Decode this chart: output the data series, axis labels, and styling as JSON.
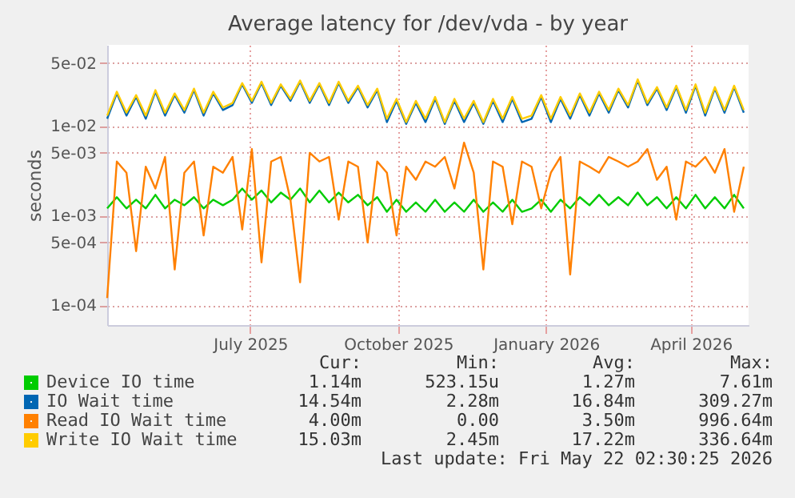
{
  "chart_data": {
    "type": "line",
    "title": "Average latency for /dev/vda - by year",
    "ylabel": "seconds",
    "x": [
      "2025-04-18",
      "2025-04-24",
      "2025-04-30",
      "2025-05-06",
      "2025-05-12",
      "2025-05-18",
      "2025-05-24",
      "2025-05-30",
      "2025-06-05",
      "2025-06-11",
      "2025-06-17",
      "2025-06-23",
      "2025-06-29",
      "2025-07-05",
      "2025-07-11",
      "2025-07-17",
      "2025-07-23",
      "2025-07-29",
      "2025-08-04",
      "2025-08-10",
      "2025-08-16",
      "2025-08-22",
      "2025-08-28",
      "2025-09-03",
      "2025-09-09",
      "2025-09-15",
      "2025-09-21",
      "2025-09-27",
      "2025-10-03",
      "2025-10-09",
      "2025-10-15",
      "2025-10-21",
      "2025-10-27",
      "2025-11-02",
      "2025-11-08",
      "2025-11-14",
      "2025-11-20",
      "2025-11-26",
      "2025-12-02",
      "2025-12-08",
      "2025-12-14",
      "2025-12-20",
      "2025-12-26",
      "2026-01-01",
      "2026-01-07",
      "2026-01-13",
      "2026-01-19",
      "2026-01-25",
      "2026-01-31",
      "2026-02-06",
      "2026-02-12",
      "2026-02-18",
      "2026-02-24",
      "2026-03-02",
      "2026-03-08",
      "2026-03-14",
      "2026-03-20",
      "2026-03-26",
      "2026-04-01",
      "2026-04-07",
      "2026-04-13",
      "2026-04-19",
      "2026-04-25",
      "2026-05-01",
      "2026-05-07",
      "2026-05-13",
      "2026-05-19"
    ],
    "series": [
      {
        "name": "Device IO time",
        "color": "#00cc00",
        "values": [
          0.0012,
          0.0016,
          0.0012,
          0.0015,
          0.0012,
          0.0017,
          0.0012,
          0.0015,
          0.0013,
          0.0016,
          0.0012,
          0.0015,
          0.0013,
          0.0015,
          0.002,
          0.0015,
          0.0019,
          0.0014,
          0.0018,
          0.0015,
          0.002,
          0.0014,
          0.0019,
          0.0014,
          0.0018,
          0.0014,
          0.0017,
          0.0013,
          0.0016,
          0.0011,
          0.0015,
          0.0011,
          0.0014,
          0.0011,
          0.0015,
          0.0011,
          0.0014,
          0.0011,
          0.0015,
          0.0011,
          0.0014,
          0.0011,
          0.0015,
          0.0011,
          0.0012,
          0.0015,
          0.0011,
          0.0015,
          0.0012,
          0.0016,
          0.0013,
          0.0017,
          0.0013,
          0.0016,
          0.0013,
          0.0018,
          0.0013,
          0.0016,
          0.0012,
          0.0016,
          0.0012,
          0.0017,
          0.0012,
          0.0016,
          0.0012,
          0.0017,
          0.0012
        ]
      },
      {
        "name": "IO Wait time",
        "color": "#0066b3",
        "values": [
          0.012,
          0.023,
          0.013,
          0.021,
          0.012,
          0.024,
          0.013,
          0.022,
          0.014,
          0.025,
          0.013,
          0.023,
          0.015,
          0.017,
          0.029,
          0.018,
          0.03,
          0.017,
          0.028,
          0.019,
          0.031,
          0.018,
          0.029,
          0.017,
          0.03,
          0.018,
          0.027,
          0.016,
          0.025,
          0.011,
          0.019,
          0.0105,
          0.018,
          0.011,
          0.02,
          0.0105,
          0.019,
          0.011,
          0.018,
          0.0105,
          0.019,
          0.011,
          0.02,
          0.011,
          0.012,
          0.021,
          0.011,
          0.02,
          0.012,
          0.022,
          0.013,
          0.023,
          0.014,
          0.025,
          0.016,
          0.032,
          0.017,
          0.026,
          0.015,
          0.027,
          0.014,
          0.028,
          0.013,
          0.026,
          0.014,
          0.027,
          0.014
        ]
      },
      {
        "name": "Read IO Wait time",
        "color": "#ff8000",
        "values": [
          0.00012,
          0.004,
          0.003,
          0.0004,
          0.0035,
          0.002,
          0.0045,
          0.00025,
          0.003,
          0.004,
          0.0006,
          0.0035,
          0.003,
          0.0045,
          0.0007,
          0.0055,
          0.0003,
          0.004,
          0.0045,
          0.0015,
          0.00018,
          0.005,
          0.004,
          0.0045,
          0.0009,
          0.004,
          0.0035,
          0.0005,
          0.004,
          0.003,
          0.0006,
          0.0035,
          0.0025,
          0.004,
          0.0035,
          0.0045,
          0.002,
          0.0065,
          0.003,
          0.00025,
          0.004,
          0.0035,
          0.0008,
          0.004,
          0.0035,
          0.0012,
          0.003,
          0.0045,
          0.00022,
          0.004,
          0.0035,
          0.003,
          0.0045,
          0.004,
          0.0035,
          0.004,
          0.0055,
          0.0025,
          0.0035,
          0.0009,
          0.004,
          0.0035,
          0.0045,
          0.003,
          0.0055,
          0.0011,
          0.0035
        ]
      },
      {
        "name": "Write IO Wait time",
        "color": "#ffcc00",
        "values": [
          0.013,
          0.024,
          0.014,
          0.022,
          0.013,
          0.025,
          0.014,
          0.023,
          0.015,
          0.026,
          0.014,
          0.024,
          0.016,
          0.018,
          0.03,
          0.019,
          0.031,
          0.018,
          0.029,
          0.02,
          0.032,
          0.019,
          0.03,
          0.018,
          0.031,
          0.019,
          0.028,
          0.017,
          0.026,
          0.012,
          0.02,
          0.011,
          0.019,
          0.012,
          0.021,
          0.011,
          0.02,
          0.012,
          0.019,
          0.011,
          0.02,
          0.012,
          0.021,
          0.012,
          0.013,
          0.022,
          0.012,
          0.021,
          0.013,
          0.023,
          0.014,
          0.024,
          0.015,
          0.026,
          0.017,
          0.033,
          0.018,
          0.027,
          0.016,
          0.028,
          0.015,
          0.029,
          0.014,
          0.027,
          0.015,
          0.028,
          0.015
        ]
      }
    ],
    "log": true,
    "ylim": [
      6e-05,
      0.08
    ],
    "yticks": [
      {
        "value": 0.0001,
        "label": "1e-04"
      },
      {
        "value": 0.0005,
        "label": "5e-04"
      },
      {
        "value": 0.001,
        "label": "1e-03"
      },
      {
        "value": 0.005,
        "label": "5e-03"
      },
      {
        "value": 0.01,
        "label": "1e-02"
      },
      {
        "value": 0.05,
        "label": "5e-02"
      }
    ],
    "xlim": [
      "2025-04-18",
      "2026-05-22"
    ],
    "xticks": [
      {
        "value": "2025-07-16",
        "label": "July 2025"
      },
      {
        "value": "2025-10-16",
        "label": "October 2025"
      },
      {
        "value": "2026-01-16",
        "label": "January 2026"
      },
      {
        "value": "2026-04-16",
        "label": "April 2026"
      }
    ],
    "grid": true,
    "legend": "bottom left",
    "annotations": [
      "Cur:",
      "Min:",
      "Avg:",
      "Max:",
      "1.14m",
      "523.15u",
      "1.27m",
      "7.61m",
      "14.54m",
      "2.28m",
      "16.84m",
      "309.27m",
      "4.00m",
      "0.00",
      "3.50m",
      "996.64m",
      "15.03m",
      "2.45m",
      "17.22m",
      "336.64m",
      "Last update: Fri May 22 02:30:25 2026"
    ]
  }
}
